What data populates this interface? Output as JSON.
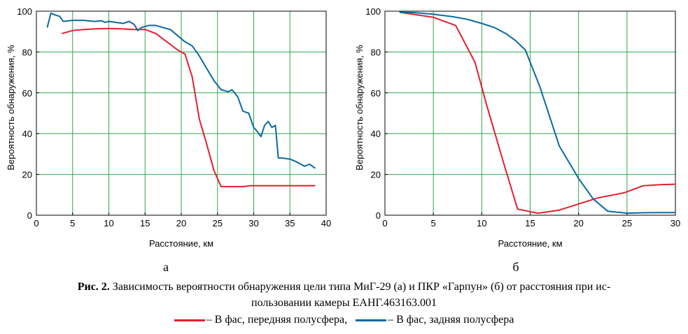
{
  "caption": {
    "fig_label": "Рис. 2.",
    "line1": "Зависимость вероятности обнаружения цели типа МиГ-29 (а) и ПКР «Гарпун» (б) от расстояния при ис-",
    "line2": "пользовании камеры ЕАНГ.463163.001"
  },
  "legend": [
    {
      "label": "– В фас, передняя полусфера,",
      "color": "#e4202f"
    },
    {
      "label": "– В фас, задняя полусфера",
      "color": "#0a6aa1"
    }
  ],
  "chart_data": [
    {
      "type": "line",
      "panel_label": "а",
      "xlabel": "Расстояние, км",
      "ylabel": "Вероятность обнаружения, %",
      "xlim": [
        0,
        40
      ],
      "ylim": [
        0,
        100
      ],
      "xticks": [
        0,
        5,
        10,
        15,
        20,
        25,
        30,
        35,
        40
      ],
      "yticks": [
        0,
        20,
        40,
        60,
        80,
        100
      ],
      "grid": true,
      "series": [
        {
          "name": "В фас, передняя полусфера",
          "color": "#e4202f",
          "x": [
            3.5,
            5,
            6.5,
            8,
            10,
            12,
            13.5,
            15,
            16.5,
            18,
            19.5,
            20.5,
            21.5,
            22.5,
            23.5,
            24.5,
            25.5,
            27,
            28.5,
            29.5,
            31,
            33,
            35,
            38.5
          ],
          "y": [
            89,
            90.5,
            91,
            91.3,
            91.5,
            91.3,
            91,
            91,
            89,
            85,
            81,
            79,
            68,
            47,
            35,
            22,
            14,
            14,
            14,
            14.5,
            14.5,
            14.5,
            14.5,
            14.5
          ]
        },
        {
          "name": "В фас, задняя полусфера",
          "color": "#0a6aa1",
          "x": [
            1.5,
            2,
            2.7,
            3.2,
            3.7,
            5,
            6.5,
            8,
            9,
            9.5,
            10,
            11,
            12,
            12.8,
            13.5,
            14,
            14.5,
            15.5,
            16.5,
            17.5,
            18.5,
            19.5,
            20.5,
            21.5,
            22.5,
            23.5,
            24.5,
            25.5,
            26.5,
            27,
            27.8,
            28.5,
            29.3,
            30,
            30.5,
            31,
            31.5,
            32,
            32.5,
            33,
            33.4,
            34,
            35,
            36,
            37,
            37.7,
            38.5
          ],
          "y": [
            92,
            99,
            98,
            97.5,
            95,
            95.5,
            95.5,
            95,
            95.3,
            94.5,
            95,
            94.5,
            94,
            95,
            93.5,
            90.5,
            92,
            93,
            93,
            92,
            91,
            88,
            85,
            83,
            78,
            72,
            66,
            61.5,
            60.5,
            61.5,
            58,
            51,
            50,
            43,
            41,
            38.5,
            44,
            46,
            43,
            44,
            28,
            28,
            27.5,
            26,
            24,
            25,
            23
          ]
        }
      ]
    },
    {
      "type": "line",
      "panel_label": "б",
      "xlabel": "Расстояние, км",
      "ylabel": "Вероятность обнаружения, %",
      "xlim": [
        0,
        30
      ],
      "ylim": [
        0,
        100
      ],
      "xticks": [
        0,
        5,
        10,
        15,
        20,
        25,
        30
      ],
      "yticks": [
        0,
        20,
        40,
        60,
        80,
        100
      ],
      "grid": true,
      "series": [
        {
          "name": "В фас, передняя полусфера",
          "color": "#e4202f",
          "x": [
            1.5,
            5,
            7.3,
            9.3,
            10.5,
            12.3,
            13.7,
            15.8,
            18,
            20,
            22,
            24.7,
            26.7,
            28.5,
            30.3
          ],
          "y": [
            99.5,
            97,
            93,
            75,
            54,
            25,
            3,
            1,
            2.5,
            5.5,
            8.5,
            11,
            14.5,
            15,
            15.2
          ]
        },
        {
          "name": "В фас, задняя полусфера",
          "color": "#0a6aa1",
          "x": [
            1.5,
            3,
            5,
            7,
            8.5,
            10,
            11.3,
            12.5,
            13.5,
            14.5,
            16,
            18,
            20,
            21.5,
            23,
            25,
            26.5,
            28.5,
            30.3
          ],
          "y": [
            99.5,
            99.3,
            98.5,
            97.3,
            96,
            94,
            92,
            89,
            85.5,
            81,
            63,
            34,
            18,
            8,
            2,
            1,
            1.2,
            1.3,
            1.3
          ]
        }
      ]
    }
  ]
}
